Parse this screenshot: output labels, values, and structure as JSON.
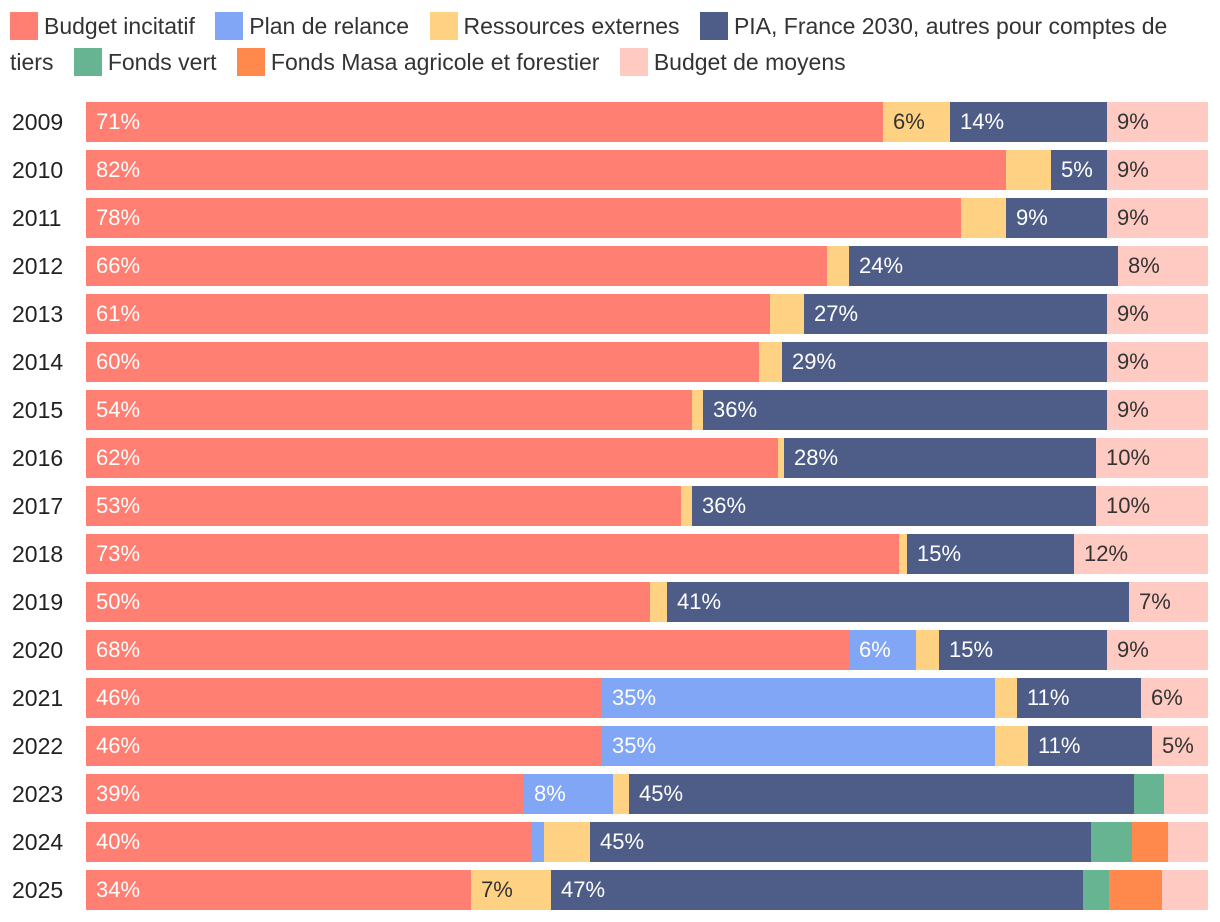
{
  "chart_data": {
    "type": "bar",
    "orientation": "horizontal",
    "stacked": true,
    "unit": "%",
    "xlim": [
      0,
      100
    ],
    "grid": false,
    "legend": "top",
    "categories": [
      "2009",
      "2010",
      "2011",
      "2012",
      "2013",
      "2014",
      "2015",
      "2016",
      "2017",
      "2018",
      "2019",
      "2020",
      "2021",
      "2022",
      "2023",
      "2024",
      "2025"
    ],
    "series": [
      {
        "name": "Budget incitatif",
        "color": "#FF7F73",
        "label_color": "#FFFFFF",
        "values": [
          71,
          82,
          78,
          66,
          61,
          60,
          54,
          62,
          53,
          73,
          50,
          68,
          46,
          46,
          39,
          40,
          34
        ]
      },
      {
        "name": "Plan de relance",
        "color": "#81A6F6",
        "label_color": "#FFFFFF",
        "values": [
          0,
          0,
          0,
          0,
          0,
          0,
          0,
          0,
          0,
          0,
          0,
          6,
          35,
          35,
          8,
          1.1,
          0
        ]
      },
      {
        "name": "Ressources externes",
        "color": "#FFD283",
        "label_color": "#333333",
        "values": [
          6,
          4,
          4,
          2,
          3,
          2,
          1,
          0.5,
          1,
          0.7,
          1.5,
          2,
          2,
          3,
          1.4,
          4.1,
          7
        ]
      },
      {
        "name": "PIA, France 2030, autres pour comptes de tiers",
        "color": "#4E5C88",
        "label_color": "#FFFFFF",
        "values": [
          14,
          5,
          9,
          24,
          27,
          29,
          36,
          28,
          36,
          15,
          41,
          15,
          11,
          11,
          45,
          45,
          47
        ]
      },
      {
        "name": "Fonds vert",
        "color": "#66B492",
        "label_color": "#FFFFFF",
        "values": [
          0,
          0,
          0,
          0,
          0,
          0,
          0,
          0,
          0,
          0,
          0,
          0,
          0,
          0,
          2.7,
          3.7,
          2.3
        ]
      },
      {
        "name": "Fonds Masa agricole et forestier",
        "color": "#FF884C",
        "label_color": "#FFFFFF",
        "values": [
          0,
          0,
          0,
          0,
          0,
          0,
          0,
          0,
          0,
          0,
          0,
          0,
          0,
          0,
          0,
          3.2,
          4.6
        ]
      },
      {
        "name": "Budget de moyens",
        "color": "#FFCAC2",
        "label_color": "#333333",
        "values": [
          9,
          9,
          9,
          8,
          9,
          9,
          9,
          10,
          10,
          12,
          7,
          9,
          6,
          5,
          3.9,
          3.6,
          4.1
        ]
      }
    ]
  }
}
